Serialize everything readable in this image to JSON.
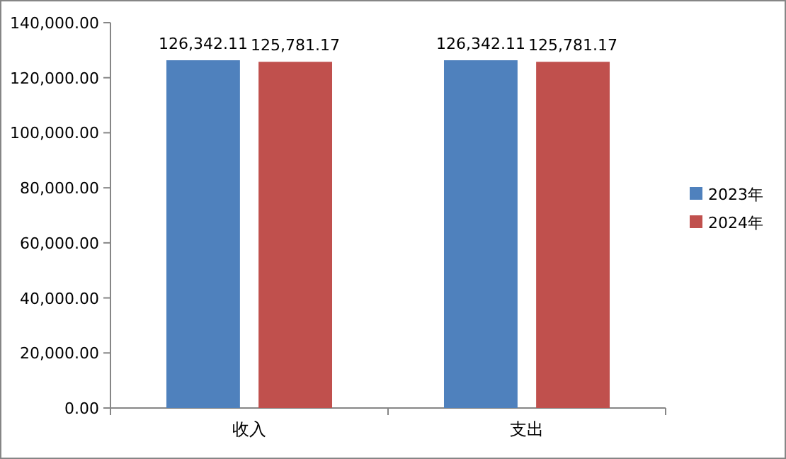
{
  "chart_data": {
    "type": "bar",
    "categories": [
      "收入",
      "支出"
    ],
    "series": [
      {
        "name": "2023年",
        "color": "#4f81bd",
        "values": [
          126342.11,
          126342.11
        ],
        "value_labels": [
          "126,342.11",
          "126,342.11"
        ]
      },
      {
        "name": "2024年",
        "color": "#c0504d",
        "values": [
          125781.17,
          125781.17
        ],
        "value_labels": [
          "125,781.17",
          "125,781.17"
        ]
      }
    ],
    "ylim": [
      0,
      140000
    ],
    "yticks": [
      {
        "value": 0,
        "label": "0.00"
      },
      {
        "value": 20000,
        "label": "20,000.00"
      },
      {
        "value": 40000,
        "label": "40,000.00"
      },
      {
        "value": 60000,
        "label": "60,000.00"
      },
      {
        "value": 80000,
        "label": "80,000.00"
      },
      {
        "value": 100000,
        "label": "100,000.00"
      },
      {
        "value": 120000,
        "label": "120,000.00"
      },
      {
        "value": 140000,
        "label": "140,000.00"
      }
    ],
    "legend": "right"
  }
}
